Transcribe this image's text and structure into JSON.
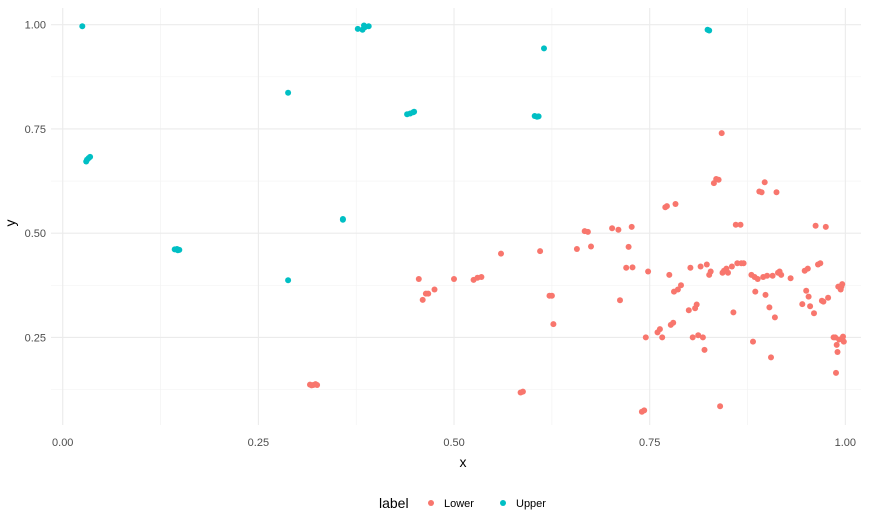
{
  "chart_data": {
    "type": "scatter",
    "title": "",
    "xlabel": "x",
    "ylabel": "y",
    "xlim": [
      -0.015,
      1.02
    ],
    "ylim": [
      0.04,
      1.04
    ],
    "x_ticks": [
      0.0,
      0.25,
      0.5,
      0.75,
      1.0
    ],
    "x_tick_labels": [
      "0.00",
      "0.25",
      "0.50",
      "0.75",
      "1.00"
    ],
    "y_ticks": [
      0.25,
      0.5,
      0.75,
      1.0
    ],
    "y_tick_labels": [
      "0.25",
      "0.50",
      "0.75",
      "1.00"
    ],
    "grid": true,
    "legend": {
      "title": "label",
      "position": "bottom",
      "entries": [
        {
          "name": "Lower",
          "color": "#F8766D"
        },
        {
          "name": "Upper",
          "color": "#00BFC4"
        }
      ]
    },
    "series": [
      {
        "name": "Upper",
        "color": "#00BFC4",
        "points": [
          [
            0.025,
            0.996
          ],
          [
            0.033,
            0.68
          ],
          [
            0.035,
            0.683
          ],
          [
            0.031,
            0.676
          ],
          [
            0.03,
            0.672
          ],
          [
            0.143,
            0.461
          ],
          [
            0.146,
            0.462
          ],
          [
            0.149,
            0.46
          ],
          [
            0.147,
            0.459
          ],
          [
            0.288,
            0.837
          ],
          [
            0.288,
            0.387
          ],
          [
            0.358,
            0.534
          ],
          [
            0.358,
            0.532
          ],
          [
            0.377,
            0.99
          ],
          [
            0.383,
            0.988
          ],
          [
            0.385,
            0.998
          ],
          [
            0.386,
            0.994
          ],
          [
            0.391,
            0.996
          ],
          [
            0.44,
            0.785
          ],
          [
            0.444,
            0.787
          ],
          [
            0.448,
            0.79
          ],
          [
            0.449,
            0.791
          ],
          [
            0.603,
            0.781
          ],
          [
            0.606,
            0.779
          ],
          [
            0.608,
            0.78
          ],
          [
            0.615,
            0.943
          ],
          [
            0.824,
            0.988
          ],
          [
            0.826,
            0.986
          ]
        ]
      },
      {
        "name": "Lower",
        "color": "#F8766D",
        "points": [
          [
            0.316,
            0.137
          ],
          [
            0.32,
            0.136
          ],
          [
            0.323,
            0.138
          ],
          [
            0.318,
            0.135
          ],
          [
            0.325,
            0.136
          ],
          [
            0.455,
            0.39
          ],
          [
            0.46,
            0.34
          ],
          [
            0.464,
            0.355
          ],
          [
            0.467,
            0.355
          ],
          [
            0.475,
            0.365
          ],
          [
            0.5,
            0.39
          ],
          [
            0.525,
            0.388
          ],
          [
            0.53,
            0.393
          ],
          [
            0.535,
            0.395
          ],
          [
            0.56,
            0.451
          ],
          [
            0.585,
            0.118
          ],
          [
            0.588,
            0.12
          ],
          [
            0.61,
            0.457
          ],
          [
            0.622,
            0.35
          ],
          [
            0.625,
            0.35
          ],
          [
            0.627,
            0.282
          ],
          [
            0.657,
            0.462
          ],
          [
            0.667,
            0.505
          ],
          [
            0.671,
            0.503
          ],
          [
            0.675,
            0.468
          ],
          [
            0.702,
            0.512
          ],
          [
            0.71,
            0.508
          ],
          [
            0.712,
            0.339
          ],
          [
            0.72,
            0.417
          ],
          [
            0.723,
            0.467
          ],
          [
            0.727,
            0.515
          ],
          [
            0.728,
            0.418
          ],
          [
            0.74,
            0.072
          ],
          [
            0.743,
            0.075
          ],
          [
            0.745,
            0.25
          ],
          [
            0.748,
            0.408
          ],
          [
            0.76,
            0.262
          ],
          [
            0.763,
            0.27
          ],
          [
            0.766,
            0.25
          ],
          [
            0.77,
            0.562
          ],
          [
            0.772,
            0.565
          ],
          [
            0.775,
            0.4
          ],
          [
            0.777,
            0.28
          ],
          [
            0.78,
            0.285
          ],
          [
            0.781,
            0.36
          ],
          [
            0.783,
            0.57
          ],
          [
            0.786,
            0.365
          ],
          [
            0.79,
            0.375
          ],
          [
            0.8,
            0.315
          ],
          [
            0.802,
            0.417
          ],
          [
            0.805,
            0.25
          ],
          [
            0.808,
            0.32
          ],
          [
            0.81,
            0.329
          ],
          [
            0.812,
            0.255
          ],
          [
            0.815,
            0.42
          ],
          [
            0.818,
            0.25
          ],
          [
            0.82,
            0.22
          ],
          [
            0.823,
            0.425
          ],
          [
            0.826,
            0.4
          ],
          [
            0.828,
            0.408
          ],
          [
            0.832,
            0.62
          ],
          [
            0.835,
            0.63
          ],
          [
            0.838,
            0.628
          ],
          [
            0.84,
            0.085
          ],
          [
            0.842,
            0.74
          ],
          [
            0.843,
            0.405
          ],
          [
            0.845,
            0.41
          ],
          [
            0.848,
            0.415
          ],
          [
            0.85,
            0.405
          ],
          [
            0.855,
            0.42
          ],
          [
            0.857,
            0.31
          ],
          [
            0.86,
            0.52
          ],
          [
            0.866,
            0.52
          ],
          [
            0.862,
            0.428
          ],
          [
            0.867,
            0.428
          ],
          [
            0.87,
            0.428
          ],
          [
            0.88,
            0.4
          ],
          [
            0.882,
            0.24
          ],
          [
            0.884,
            0.395
          ],
          [
            0.885,
            0.36
          ],
          [
            0.888,
            0.39
          ],
          [
            0.89,
            0.6
          ],
          [
            0.893,
            0.598
          ],
          [
            0.895,
            0.395
          ],
          [
            0.897,
            0.622
          ],
          [
            0.898,
            0.352
          ],
          [
            0.9,
            0.398
          ],
          [
            0.903,
            0.322
          ],
          [
            0.905,
            0.202
          ],
          [
            0.907,
            0.398
          ],
          [
            0.91,
            0.298
          ],
          [
            0.912,
            0.598
          ],
          [
            0.914,
            0.405
          ],
          [
            0.916,
            0.408
          ],
          [
            0.918,
            0.4
          ],
          [
            0.93,
            0.392
          ],
          [
            0.945,
            0.33
          ],
          [
            0.948,
            0.41
          ],
          [
            0.95,
            0.362
          ],
          [
            0.952,
            0.415
          ],
          [
            0.953,
            0.348
          ],
          [
            0.955,
            0.325
          ],
          [
            0.96,
            0.308
          ],
          [
            0.962,
            0.518
          ],
          [
            0.965,
            0.425
          ],
          [
            0.968,
            0.428
          ],
          [
            0.97,
            0.338
          ],
          [
            0.972,
            0.336
          ],
          [
            0.975,
            0.515
          ],
          [
            0.978,
            0.345
          ],
          [
            0.985,
            0.25
          ],
          [
            0.987,
            0.25
          ],
          [
            0.988,
            0.165
          ],
          [
            0.989,
            0.232
          ],
          [
            0.99,
            0.215
          ],
          [
            0.991,
            0.372
          ],
          [
            0.992,
            0.245
          ],
          [
            0.994,
            0.365
          ],
          [
            0.995,
            0.372
          ],
          [
            0.996,
            0.378
          ],
          [
            0.997,
            0.252
          ],
          [
            0.998,
            0.24
          ]
        ]
      }
    ]
  }
}
